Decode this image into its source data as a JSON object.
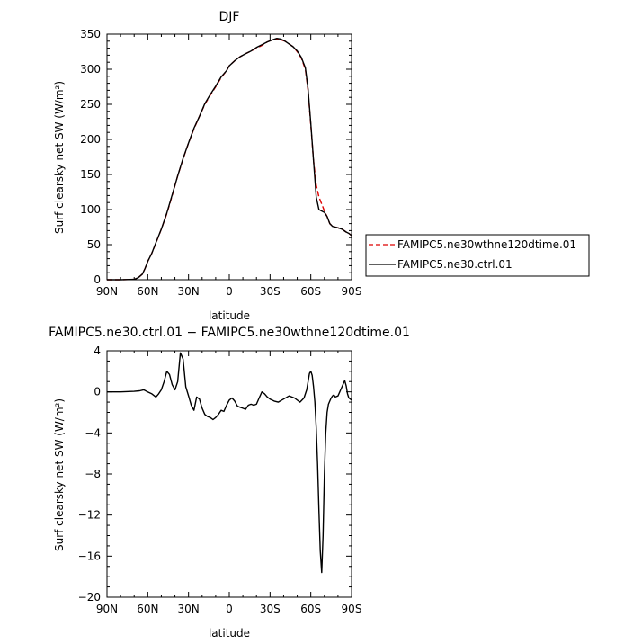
{
  "chart_data": [
    {
      "type": "line",
      "title": "DJF",
      "xlabel": "latitude",
      "ylabel": "Surf clearsky net SW (W/m²)",
      "xlim": [
        90,
        -90
      ],
      "ylim": [
        0,
        350
      ],
      "xticks": [
        90,
        60,
        30,
        0,
        -30,
        -60,
        -90
      ],
      "xtick_labels": [
        "90N",
        "60N",
        "30N",
        "0",
        "30S",
        "60S",
        "90S"
      ],
      "yticks": [
        0,
        50,
        100,
        150,
        200,
        250,
        300,
        350
      ],
      "ytick_labels": [
        "0",
        "50",
        "100",
        "150",
        "200",
        "250",
        "300",
        "350"
      ],
      "legend_position": "right",
      "series": [
        {
          "name": "FAMIPC5.ne30wthne120dtime.01",
          "color": "#dd0000",
          "dash": "dashed",
          "x": [
            90,
            80,
            70,
            67,
            64,
            62,
            60,
            57,
            54,
            50,
            46,
            42,
            38,
            34,
            30,
            26,
            22,
            18,
            14,
            10,
            6,
            2,
            0,
            -4,
            -8,
            -12,
            -16,
            -20,
            -24,
            -28,
            -32,
            -35,
            -38,
            -41,
            -44,
            -47,
            -50,
            -53,
            -56,
            -58,
            -60,
            -62,
            -64,
            -66,
            -68,
            -70,
            -72,
            -74,
            -76,
            -78,
            -80,
            -83,
            -86,
            -88,
            -90
          ],
          "y": [
            0,
            0,
            0.5,
            3,
            8,
            16,
            26,
            38,
            52,
            72,
            94,
            120,
            148,
            172,
            195,
            215,
            233,
            250,
            263,
            275,
            288,
            298,
            305,
            312,
            318,
            322,
            326,
            330,
            334,
            339,
            342,
            343,
            342,
            340,
            336,
            332,
            325,
            316,
            300,
            270,
            220,
            170,
            135,
            118,
            108,
            98,
            90,
            80,
            76,
            75,
            74,
            72,
            68,
            66,
            63
          ]
        },
        {
          "name": "FAMIPC5.ne30.ctrl.01",
          "color": "#000000",
          "dash": "solid",
          "x": [
            90,
            80,
            70,
            67,
            64,
            62,
            60,
            57,
            54,
            50,
            46,
            42,
            38,
            34,
            30,
            26,
            22,
            18,
            14,
            10,
            6,
            2,
            0,
            -4,
            -8,
            -12,
            -16,
            -20,
            -24,
            -28,
            -32,
            -35,
            -38,
            -41,
            -44,
            -47,
            -50,
            -53,
            -56,
            -58,
            -60,
            -62,
            -64,
            -66,
            -68,
            -70,
            -72,
            -74,
            -76,
            -78,
            -80,
            -83,
            -86,
            -88,
            -90
          ],
          "y": [
            0,
            0,
            0.5,
            3,
            8,
            16,
            26,
            38,
            53,
            72,
            95,
            121,
            148,
            173,
            195,
            216,
            233,
            251,
            264,
            276,
            289,
            298,
            305,
            312,
            318,
            322,
            326,
            331,
            335,
            339,
            342,
            344,
            343,
            340,
            336,
            332,
            326,
            317,
            302,
            272,
            222,
            170,
            118,
            100,
            98,
            96,
            90,
            80,
            76,
            75,
            74,
            72,
            68,
            66,
            63
          ]
        }
      ]
    },
    {
      "type": "line",
      "title": "FAMIPC5.ne30.ctrl.01 − FAMIPC5.ne30wthne120dtime.01",
      "xlabel": "latitude",
      "ylabel": "Surf clearsky net SW (W/m²)",
      "xlim": [
        90,
        -90
      ],
      "ylim": [
        -20,
        4
      ],
      "xticks": [
        90,
        60,
        30,
        0,
        -30,
        -60,
        -90
      ],
      "xtick_labels": [
        "90N",
        "60N",
        "30N",
        "0",
        "30S",
        "60S",
        "90S"
      ],
      "yticks": [
        -20,
        -16,
        -12,
        -8,
        -4,
        0,
        4
      ],
      "ytick_labels": [
        "−20",
        "−16",
        "−12",
        "−8",
        "−4",
        "0",
        "4"
      ],
      "series": [
        {
          "color": "#000000",
          "dash": "solid",
          "x": [
            90,
            80,
            70,
            66,
            63,
            60,
            57,
            54,
            52,
            50,
            48,
            46,
            44,
            42,
            40,
            38,
            36,
            34,
            32,
            30,
            28,
            26,
            24,
            22,
            20,
            18,
            16,
            14,
            12,
            10,
            8,
            6,
            4,
            2,
            0,
            -2,
            -4,
            -6,
            -8,
            -10,
            -12,
            -14,
            -16,
            -18,
            -20,
            -22,
            -24,
            -26,
            -28,
            -30,
            -33,
            -36,
            -40,
            -44,
            -48,
            -52,
            -55,
            -57,
            -59,
            -60,
            -61,
            -62,
            -63,
            -64,
            -65,
            -66,
            -67,
            -68,
            -69,
            -70,
            -71,
            -72,
            -73,
            -74,
            -75,
            -76,
            -77,
            -78,
            -80,
            -82,
            -84,
            -85,
            -86,
            -87,
            -88,
            -90
          ],
          "y": [
            0,
            0,
            0.05,
            0.1,
            0.2,
            0,
            -0.2,
            -0.5,
            -0.2,
            0.2,
            1.0,
            2.0,
            1.7,
            0.7,
            0.2,
            1.0,
            3.8,
            3.2,
            0.5,
            -0.4,
            -1.3,
            -1.8,
            -0.5,
            -0.7,
            -1.6,
            -2.2,
            -2.4,
            -2.5,
            -2.7,
            -2.5,
            -2.2,
            -1.8,
            -1.9,
            -1.3,
            -0.8,
            -0.6,
            -0.9,
            -1.4,
            -1.5,
            -1.6,
            -1.7,
            -1.3,
            -1.2,
            -1.3,
            -1.2,
            -0.6,
            0,
            -0.2,
            -0.5,
            -0.7,
            -0.9,
            -1.0,
            -0.7,
            -0.4,
            -0.6,
            -1.0,
            -0.6,
            0.2,
            1.8,
            2.0,
            1.6,
            0.5,
            -1.0,
            -3.5,
            -7.0,
            -11.5,
            -15.5,
            -17.6,
            -14.0,
            -8.0,
            -4.0,
            -2.0,
            -1.2,
            -0.9,
            -0.6,
            -0.4,
            -0.3,
            -0.5,
            -0.4,
            0.2,
            0.8,
            1.1,
            0.6,
            -0.2,
            -0.6,
            -0.8
          ]
        }
      ]
    }
  ]
}
